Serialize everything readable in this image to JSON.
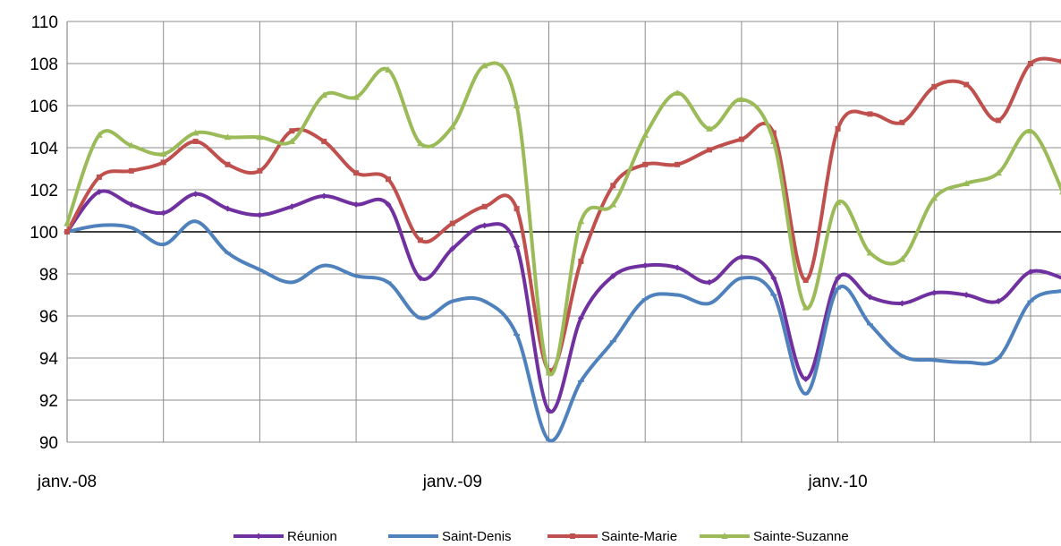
{
  "chart_data": {
    "type": "line",
    "x_tick_labels": [
      "janv.-08",
      "janv.-09",
      "janv.-10"
    ],
    "y_ticks": [
      90,
      92,
      94,
      96,
      98,
      100,
      102,
      104,
      106,
      108,
      110
    ],
    "ylim": [
      90,
      110
    ],
    "x_range": [
      0,
      31
    ],
    "reference_line": 100,
    "grid": true,
    "legend_position": "bottom",
    "series": [
      {
        "name": "Réunion",
        "color": "#7030a0",
        "marker": "diamond",
        "values": [
          100.0,
          101.9,
          101.3,
          100.9,
          101.8,
          101.1,
          100.8,
          101.2,
          101.7,
          101.3,
          101.3,
          97.8,
          99.2,
          100.3,
          99.3,
          91.5,
          95.9,
          97.9,
          98.4,
          98.3,
          97.6,
          98.8,
          97.8,
          93.0,
          97.8,
          96.9,
          96.6,
          97.1,
          97.0,
          96.7,
          98.1,
          97.8
        ]
      },
      {
        "name": "Saint-Denis",
        "color": "#4f81bd",
        "marker": "dash",
        "values": [
          100.0,
          100.3,
          100.2,
          99.4,
          100.5,
          99.0,
          98.2,
          97.6,
          98.4,
          97.9,
          97.6,
          95.9,
          96.7,
          96.7,
          95.1,
          90.1,
          92.9,
          94.8,
          96.8,
          97.0,
          96.6,
          97.8,
          97.0,
          92.3,
          97.3,
          95.6,
          94.1,
          93.9,
          93.8,
          94.0,
          96.7,
          97.2
        ]
      },
      {
        "name": "Sainte-Marie",
        "color": "#c0504d",
        "marker": "square",
        "values": [
          100.0,
          102.6,
          102.9,
          103.3,
          104.3,
          103.2,
          102.9,
          104.8,
          104.3,
          102.8,
          102.5,
          99.6,
          100.4,
          101.2,
          101.1,
          93.4,
          98.6,
          102.2,
          103.2,
          103.2,
          103.9,
          104.4,
          104.7,
          97.7,
          104.9,
          105.6,
          105.2,
          106.9,
          107.0,
          105.3,
          108.0,
          108.1
        ]
      },
      {
        "name": "Sainte-Suzanne",
        "color": "#9bbb59",
        "marker": "triangle",
        "values": [
          100.4,
          104.6,
          104.1,
          103.7,
          104.7,
          104.5,
          104.5,
          104.3,
          106.5,
          106.4,
          107.7,
          104.2,
          105.0,
          107.9,
          106.0,
          93.3,
          100.5,
          101.3,
          104.6,
          106.6,
          104.9,
          106.3,
          104.3,
          96.4,
          101.4,
          99.0,
          98.7,
          101.6,
          102.3,
          102.8,
          104.8,
          101.9
        ]
      }
    ]
  }
}
